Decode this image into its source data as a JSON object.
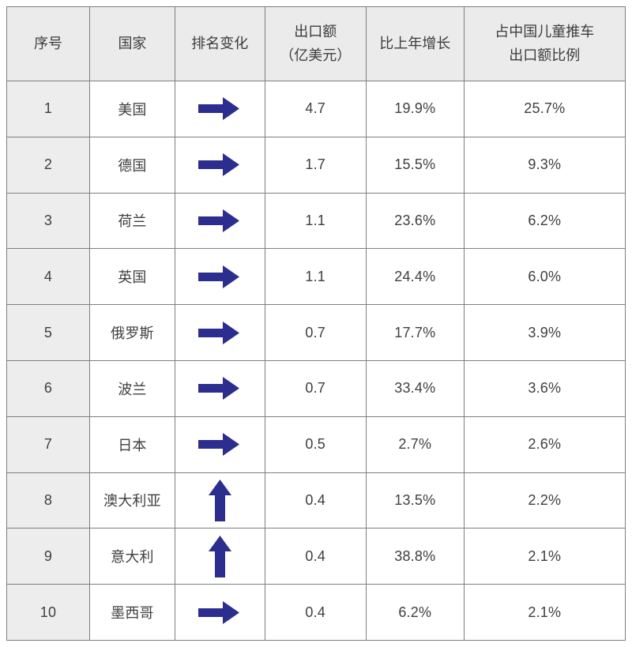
{
  "chart_data": {
    "type": "table",
    "columns": [
      "序号",
      "国家",
      "排名变化",
      "出口额\n（亿美元）",
      "比上年增长",
      "占中国儿童推车\n出口额比例"
    ],
    "rows": [
      {
        "rank": "1",
        "country": "美国",
        "rank_change": "same",
        "export_value": "4.7",
        "yoy_growth": "19.9%",
        "share": "25.7%"
      },
      {
        "rank": "2",
        "country": "德国",
        "rank_change": "same",
        "export_value": "1.7",
        "yoy_growth": "15.5%",
        "share": "9.3%"
      },
      {
        "rank": "3",
        "country": "荷兰",
        "rank_change": "same",
        "export_value": "1.1",
        "yoy_growth": "23.6%",
        "share": "6.2%"
      },
      {
        "rank": "4",
        "country": "英国",
        "rank_change": "same",
        "export_value": "1.1",
        "yoy_growth": "24.4%",
        "share": "6.0%"
      },
      {
        "rank": "5",
        "country": "俄罗斯",
        "rank_change": "same",
        "export_value": "0.7",
        "yoy_growth": "17.7%",
        "share": "3.9%"
      },
      {
        "rank": "6",
        "country": "波兰",
        "rank_change": "same",
        "export_value": "0.7",
        "yoy_growth": "33.4%",
        "share": "3.6%"
      },
      {
        "rank": "7",
        "country": "日本",
        "rank_change": "same",
        "export_value": "0.5",
        "yoy_growth": "2.7%",
        "share": "2.6%"
      },
      {
        "rank": "8",
        "country": "澳大利亚",
        "rank_change": "up",
        "export_value": "0.4",
        "yoy_growth": "13.5%",
        "share": "2.2%"
      },
      {
        "rank": "9",
        "country": "意大利",
        "rank_change": "up",
        "export_value": "0.4",
        "yoy_growth": "38.8%",
        "share": "2.1%"
      },
      {
        "rank": "10",
        "country": "墨西哥",
        "rank_change": "same",
        "export_value": "0.4",
        "yoy_growth": "6.2%",
        "share": "2.1%"
      }
    ],
    "icons": {
      "same": "right-arrow-icon",
      "up": "up-arrow-icon"
    },
    "layout_hints": {
      "grid": true,
      "header_two_line_columns": [
        3,
        5
      ]
    }
  },
  "colors": {
    "arrow": "#2b2e8e",
    "header_bg": "#ebebeb",
    "index_column_bg": "#ededed",
    "border": "#7e7e7e",
    "text": "#3f3f3f",
    "page_bg": "#ffffff"
  }
}
